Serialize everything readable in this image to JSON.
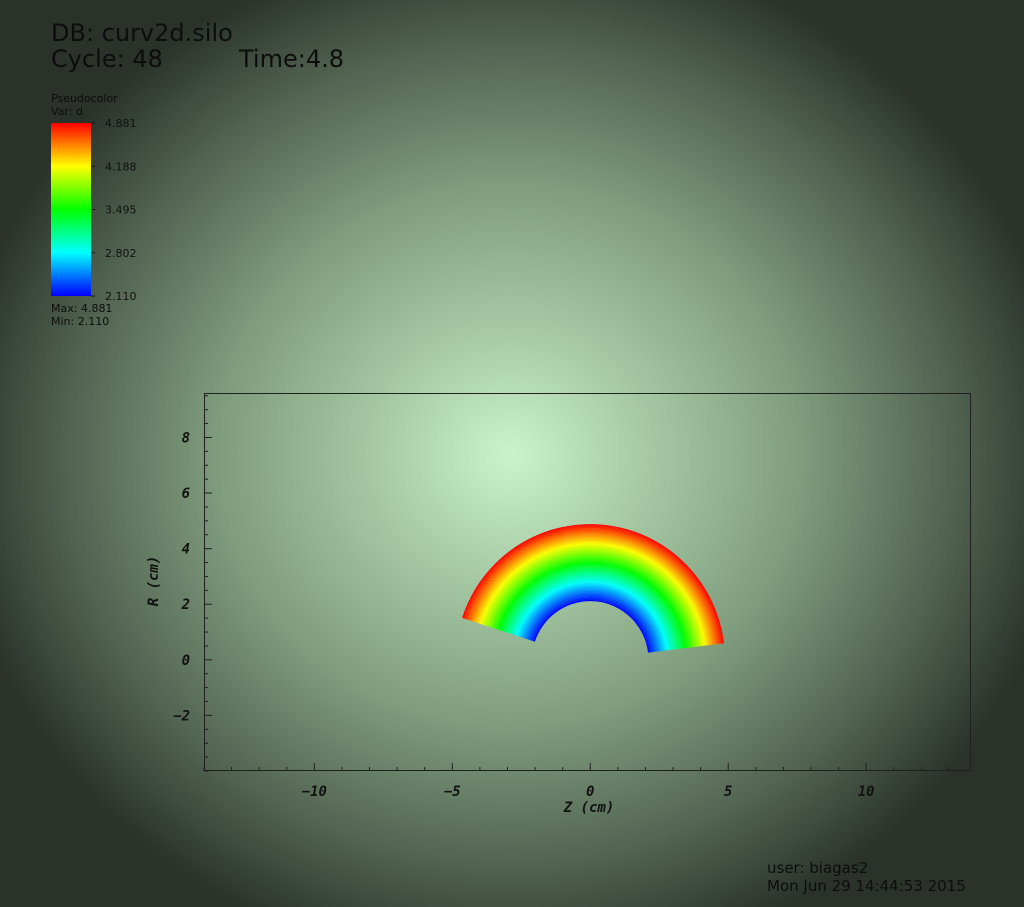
{
  "header": {
    "db": "DB: curv2d.silo",
    "cycle": "Cycle: 48",
    "time": "Time:4.8"
  },
  "legend": {
    "plot_type": "Pseudocolor",
    "var": "Var: d",
    "max_text": "Max:  4.881",
    "min_text": "Min:  2.110",
    "ticks": [
      "4.881",
      "4.188",
      "3.495",
      "2.802",
      "2.110"
    ],
    "colors": [
      "#ff0000",
      "#ffff00",
      "#00ff00",
      "#00ffff",
      "#0000ff"
    ]
  },
  "footer": {
    "user": "user: biagas2",
    "date": "Mon Jun 29 14:44:53 2015"
  },
  "chart_data": {
    "type": "heatmap",
    "mesh": "annular sector",
    "variable": "d",
    "value_range": [
      2.11,
      4.881
    ],
    "inner_radius": 2.11,
    "outer_radius": 4.881,
    "angle_range_deg": [
      7,
      162
    ],
    "xlabel": "Z (cm)",
    "ylabel": "R (cm)",
    "xlim": [
      -14,
      13.8
    ],
    "ylim": [
      -4,
      9.6
    ],
    "x_ticks": [
      -10,
      -5,
      0,
      5,
      10
    ],
    "y_ticks": [
      -2,
      0,
      2,
      4,
      6,
      8
    ],
    "grid": false
  }
}
